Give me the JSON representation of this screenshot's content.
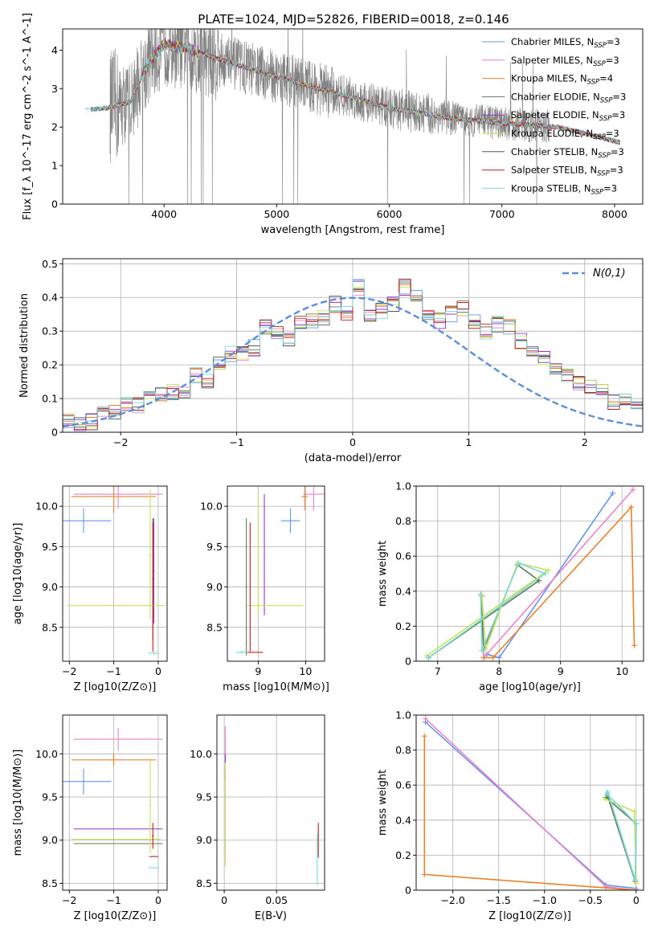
{
  "figure": {
    "title": "PLATE=1024, MJD=52826, FIBERID=0018, z=0.146"
  },
  "colors": {
    "series": [
      "#6495ED",
      "#EE82C8",
      "#E8832A",
      "#5C7A5C",
      "#9932CC",
      "#C5E35A",
      "#555555",
      "#C41E1E",
      "#7ED9D9"
    ],
    "data": "#808080",
    "grid": "#b0b0b0",
    "normal": "#5B8FD9"
  },
  "legend_labels": [
    "Chabrier MILES, N_SSP=3",
    "Salpeter MILES, N_SSP=3",
    "Kroupa MILES, N_SSP=4",
    "Chabrier ELODIE, N_SSP=3",
    "Salpeter ELODIE, N_SSP=3",
    "Kroupa ELODIE, N_SSP=3",
    "Chabrier STELIB, N_SSP=3",
    "Salpeter STELIB, N_SSP=3",
    "Kroupa STELIB, N_SSP=3"
  ],
  "chart_data": [
    {
      "id": "spectrum",
      "type": "line",
      "xlabel": "wavelength [Angstrom, rest frame]",
      "ylabel": "Flux [f_λ 10^-17 erg cm^-2 s^-1 A^-1]",
      "xlim": [
        3100,
        8250
      ],
      "ylim": [
        0,
        4.55
      ],
      "xticks": [
        4000,
        5000,
        6000,
        7000,
        8000
      ],
      "yticks": [
        0,
        1,
        2,
        3,
        4
      ],
      "grid": false,
      "legend": "top-right",
      "continuum_x": [
        3300,
        3500,
        3700,
        3850,
        4000,
        4200,
        4500,
        5000,
        5500,
        6000,
        6500,
        7000,
        7500,
        8050
      ],
      "continuum_y": [
        2.45,
        2.5,
        2.65,
        3.6,
        4.15,
        4.05,
        3.75,
        3.3,
        2.9,
        2.5,
        2.25,
        2.1,
        2.0,
        1.6
      ]
    },
    {
      "id": "residuals",
      "type": "step",
      "xlabel": "(data-model)/error",
      "ylabel": "Normed distribution",
      "xlim": [
        -2.5,
        2.5
      ],
      "ylim": [
        0,
        0.515
      ],
      "xticks": [
        -2,
        -1,
        0,
        1,
        2
      ],
      "yticks": [
        0.0,
        0.1,
        0.2,
        0.3,
        0.4,
        0.5
      ],
      "grid": true,
      "legend": "top-right",
      "legend_label": "N(0,1)",
      "bin_width": 0.1,
      "bin_start": -2.5,
      "base_hist": [
        0.03,
        0.025,
        0.03,
        0.05,
        0.06,
        0.08,
        0.08,
        0.1,
        0.11,
        0.12,
        0.12,
        0.17,
        0.15,
        0.2,
        0.23,
        0.23,
        0.25,
        0.31,
        0.3,
        0.28,
        0.32,
        0.33,
        0.34,
        0.38,
        0.35,
        0.43,
        0.34,
        0.36,
        0.38,
        0.43,
        0.41,
        0.35,
        0.33,
        0.35,
        0.37,
        0.33,
        0.3,
        0.32,
        0.31,
        0.27,
        0.24,
        0.22,
        0.18,
        0.17,
        0.15,
        0.13,
        0.12,
        0.09,
        0.1,
        0.08,
        0.07,
        0.06,
        0.05,
        0.04,
        0.05,
        0.04,
        0.05,
        0.04,
        0.05,
        0.04
      ]
    },
    {
      "id": "age_vs_Z",
      "type": "errorbar",
      "xlabel": "Z [log10(Z/Z⊙)]",
      "ylabel": "age  [log10(age/yr)]",
      "xlim": [
        -2.15,
        0.2
      ],
      "ylim": [
        8.08,
        10.25
      ],
      "xticks": [
        -2,
        -1,
        0
      ],
      "yticks": [
        8.5,
        9.0,
        9.5,
        10.0
      ],
      "grid": true,
      "points": [
        {
          "s": 0,
          "x": -1.68,
          "y": 9.82,
          "xerr": 0.62,
          "yerr": 0.15
        },
        {
          "s": 1,
          "x": -0.9,
          "y": 10.15,
          "xerr": 1.0,
          "yerr": 0.18
        },
        {
          "s": 2,
          "x": -1.0,
          "y": 10.12,
          "xerr": 0.95,
          "yerr": 0.2
        },
        {
          "s": 3,
          "x": -0.12,
          "y": 9.1,
          "xerr": 0.02,
          "yerr": 0.75
        },
        {
          "s": 4,
          "x": -0.1,
          "y": 9.2,
          "xerr": 0.02,
          "yerr": 0.65
        },
        {
          "s": 5,
          "x": -0.95,
          "y": 8.77,
          "xerr": 1.1,
          "yerr": 0.0
        },
        {
          "s": 5,
          "x": -0.18,
          "y": 9.4,
          "xerr": 0.03,
          "yerr": 0.8
        },
        {
          "s": 7,
          "x": -0.12,
          "y": 9.0,
          "xerr": 0.02,
          "yerr": 0.8
        },
        {
          "s": 8,
          "x": -0.1,
          "y": 8.18,
          "xerr": 0.12,
          "yerr": 0.02
        }
      ]
    },
    {
      "id": "age_vs_mass",
      "type": "errorbar",
      "xlabel": "mass [log10(M/M⊙)]",
      "ylabel": "",
      "xlim": [
        8.35,
        10.4
      ],
      "ylim": [
        8.08,
        10.25
      ],
      "xticks": [
        9,
        10
      ],
      "yticks": [
        8.5,
        9.0,
        9.5,
        10.0
      ],
      "grid": true,
      "points": [
        {
          "s": 0,
          "x": 9.68,
          "y": 9.82,
          "xerr": 0.2,
          "yerr": 0.15
        },
        {
          "s": 1,
          "x": 10.17,
          "y": 10.15,
          "xerr": 0.22,
          "yerr": 0.2
        },
        {
          "s": 2,
          "x": 9.98,
          "y": 10.12,
          "xerr": 0.07,
          "yerr": 0.17
        },
        {
          "s": 3,
          "x": 8.75,
          "y": 9.0,
          "xerr": 0.01,
          "yerr": 0.85
        },
        {
          "s": 4,
          "x": 9.13,
          "y": 9.4,
          "xerr": 0.01,
          "yerr": 0.75
        },
        {
          "s": 5,
          "x": 9.35,
          "y": 8.77,
          "xerr": 0.6,
          "yerr": 0.0
        },
        {
          "s": 5,
          "x": 9.0,
          "y": 9.4,
          "xerr": 0.01,
          "yerr": 0.75
        },
        {
          "s": 7,
          "x": 8.9,
          "y": 8.19,
          "xerr": 0.2,
          "yerr": 0.0
        },
        {
          "s": 7,
          "x": 8.83,
          "y": 9.0,
          "xerr": 0.01,
          "yerr": 0.8
        },
        {
          "s": 8,
          "x": 8.65,
          "y": 8.19,
          "xerr": 0.12,
          "yerr": 0.02
        }
      ]
    },
    {
      "id": "mass_weight_vs_age",
      "type": "line",
      "xlabel": "age  [log10(age/yr)]",
      "ylabel": "mass weight",
      "xlim": [
        6.65,
        10.35
      ],
      "ylim": [
        0,
        1.0
      ],
      "xticks": [
        7,
        8,
        9,
        10
      ],
      "yticks": [
        0.0,
        0.2,
        0.4,
        0.6,
        0.8,
        1.0
      ],
      "grid": true,
      "series": [
        {
          "s": 0,
          "x": [
            7.8,
            8.0,
            9.85
          ],
          "y": [
            0.04,
            0.02,
            0.96
          ]
        },
        {
          "s": 1,
          "x": [
            7.72,
            7.75,
            10.18
          ],
          "y": [
            0.37,
            0.02,
            0.98
          ]
        },
        {
          "s": 2,
          "x": [
            7.75,
            7.9,
            10.15,
            10.2
          ],
          "y": [
            0.02,
            0.02,
            0.88,
            0.09
          ]
        },
        {
          "s": 3,
          "x": [
            6.85,
            8.65,
            8.3,
            7.75,
            7.7
          ],
          "y": [
            0.02,
            0.46,
            0.55,
            0.07,
            0.38
          ]
        },
        {
          "s": 5,
          "x": [
            6.82,
            8.8,
            8.3,
            7.78,
            7.72
          ],
          "y": [
            0.03,
            0.52,
            0.56,
            0.07,
            0.38
          ]
        },
        {
          "s": 8,
          "x": [
            6.85,
            8.75,
            8.32,
            7.72,
            7.7
          ],
          "y": [
            0.02,
            0.5,
            0.56,
            0.06,
            0.38
          ]
        }
      ]
    },
    {
      "id": "mass_vs_Z",
      "type": "errorbar",
      "xlabel": "Z [log10(Z/Z⊙)]",
      "ylabel": "mass [log10(M/M⊙)]",
      "xlim": [
        -2.15,
        0.2
      ],
      "ylim": [
        8.42,
        10.45
      ],
      "xticks": [
        -2,
        -1,
        0
      ],
      "yticks": [
        8.5,
        9.0,
        9.5,
        10.0
      ],
      "grid": true,
      "points": [
        {
          "s": 0,
          "x": -1.68,
          "y": 9.68,
          "xerr": 0.62,
          "yerr": 0.15
        },
        {
          "s": 1,
          "x": -0.9,
          "y": 10.17,
          "xerr": 1.0,
          "yerr": 0.13
        },
        {
          "s": 2,
          "x": -1.0,
          "y": 9.93,
          "xerr": 0.95,
          "yerr": 0.07
        },
        {
          "s": 3,
          "x": -0.9,
          "y": 8.96,
          "xerr": 1.0,
          "yerr": 0.0
        },
        {
          "s": 4,
          "x": -0.9,
          "y": 9.13,
          "xerr": 1.0,
          "yerr": 0.0
        },
        {
          "s": 5,
          "x": -0.95,
          "y": 9.01,
          "xerr": 1.0,
          "yerr": 0.0
        },
        {
          "s": 5,
          "x": -0.18,
          "y": 9.4,
          "xerr": 0.02,
          "yerr": 0.55
        },
        {
          "s": 7,
          "x": -0.1,
          "y": 8.81,
          "xerr": 0.1,
          "yerr": 0.0
        },
        {
          "s": 7,
          "x": -0.12,
          "y": 9.05,
          "xerr": 0.02,
          "yerr": 0.15
        },
        {
          "s": 8,
          "x": -0.1,
          "y": 8.68,
          "xerr": 0.12,
          "yerr": 0.0
        }
      ]
    },
    {
      "id": "mass_vs_EBV",
      "type": "errorbar",
      "xlabel": "E(B-V)",
      "ylabel": "",
      "xlim": [
        -0.007,
        0.096
      ],
      "ylim": [
        8.42,
        10.45
      ],
      "xticks": [
        0.0,
        0.05
      ],
      "yticks": [
        8.5,
        9.0,
        9.5,
        10.0
      ],
      "grid": true,
      "points": [
        {
          "s": 1,
          "x": 0.001,
          "y": 10.0,
          "xerr": 0.0,
          "yerr": 0.32
        },
        {
          "s": 5,
          "x": 0.001,
          "y": 9.3,
          "xerr": 0.0,
          "yerr": 0.6
        },
        {
          "s": 4,
          "x": 0.001,
          "y": 9.95,
          "xerr": 0.0,
          "yerr": 0.05
        },
        {
          "s": 7,
          "x": 0.09,
          "y": 9.0,
          "xerr": 0.0,
          "yerr": 0.2
        },
        {
          "s": 8,
          "x": 0.089,
          "y": 8.78,
          "xerr": 0.0,
          "yerr": 0.3
        }
      ]
    },
    {
      "id": "mass_weight_vs_Z",
      "type": "line",
      "xlabel": "Z [log10(Z/Z⊙)]",
      "ylabel": "mass weight",
      "xlim": [
        -2.4,
        0.08
      ],
      "ylim": [
        0,
        1.0
      ],
      "xticks": [
        -2.0,
        -1.5,
        -1.0,
        -0.5,
        0.0
      ],
      "yticks": [
        0.0,
        0.2,
        0.4,
        0.6,
        0.8,
        1.0
      ],
      "grid": true,
      "series": [
        {
          "s": 0,
          "x": [
            -2.3,
            -0.33,
            0.0
          ],
          "y": [
            0.96,
            0.03,
            0.01
          ]
        },
        {
          "s": 1,
          "x": [
            -2.3,
            -0.33,
            0.0
          ],
          "y": [
            0.98,
            0.02,
            0.0
          ]
        },
        {
          "s": 2,
          "x": [
            -2.31,
            -2.31,
            0.0
          ],
          "y": [
            0.88,
            0.09,
            0.0
          ]
        },
        {
          "s": 3,
          "x": [
            -0.33,
            0.0,
            -0.01,
            -0.32
          ],
          "y": [
            0.53,
            0.38,
            0.05,
            0.55
          ]
        },
        {
          "s": 5,
          "x": [
            -0.34,
            -0.02,
            0.0,
            -0.31
          ],
          "y": [
            0.52,
            0.45,
            0.04,
            0.56
          ]
        },
        {
          "s": 8,
          "x": [
            -0.32,
            0.0,
            -0.01,
            -0.31
          ],
          "y": [
            0.55,
            0.38,
            0.06,
            0.56
          ]
        }
      ]
    }
  ]
}
